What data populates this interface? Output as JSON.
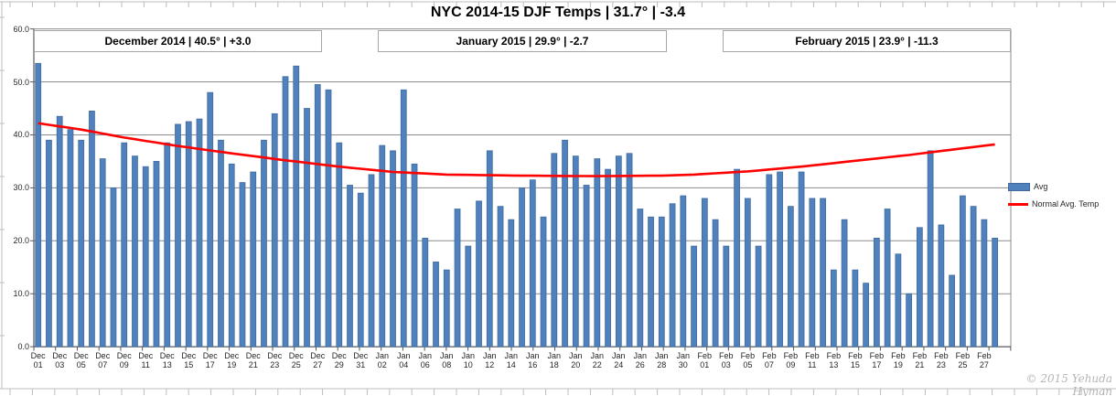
{
  "title": "NYC 2014-15 DJF Temps | 31.7° | -3.4",
  "month_boxes": [
    {
      "label": "December 2014 | 40.5° | +3.0"
    },
    {
      "label": "January 2015 | 29.9° | -2.7"
    },
    {
      "label": "February 2015 | 23.9° | -11.3"
    }
  ],
  "legend": {
    "avg_label": "Avg",
    "normal_label": "Normal Avg. Temp"
  },
  "copyright": "© 2015 Yehuda Hyman",
  "colors": {
    "bar_fill": "#4F81BD",
    "bar_border": "#41699C",
    "normal_line": "#FF0000",
    "gridline": "#8C8C8C",
    "axis_line": "#595959",
    "sheet_line": "#bdbdbd",
    "axis_text": "#262626"
  },
  "chart_data": {
    "type": "bar",
    "title": "NYC 2014-15 DJF Temps | 31.7° | -3.4",
    "ylim": [
      0,
      60
    ],
    "ytick_labels": [
      "0.0",
      "10.0",
      "20.0",
      "30.0",
      "40.0",
      "50.0",
      "60.0"
    ],
    "grid": "horizontal",
    "legend_position": "right",
    "xtick_labels": [
      "Dec 01",
      "Dec 03",
      "Dec 05",
      "Dec 07",
      "Dec 09",
      "Dec 11",
      "Dec 13",
      "Dec 15",
      "Dec 17",
      "Dec 19",
      "Dec 21",
      "Dec 23",
      "Dec 25",
      "Dec 27",
      "Dec 29",
      "Dec 31",
      "Jan 02",
      "Jan 04",
      "Jan 06",
      "Jan 08",
      "Jan 10",
      "Jan 12",
      "Jan 14",
      "Jan 16",
      "Jan 18",
      "Jan 20",
      "Jan 22",
      "Jan 24",
      "Jan 26",
      "Jan 28",
      "Jan 30",
      "Feb 01",
      "Feb 03",
      "Feb 05",
      "Feb 07",
      "Feb 09",
      "Feb 11",
      "Feb 13",
      "Feb 15",
      "Feb 17",
      "Feb 19",
      "Feb 21",
      "Feb 23",
      "Feb 25",
      "Feb 27"
    ],
    "categories_all_days": {
      "months": [
        {
          "name": "Dec",
          "days": 31
        },
        {
          "name": "Jan",
          "days": 31
        },
        {
          "name": "Feb",
          "days": 28
        }
      ]
    },
    "series": [
      {
        "name": "Avg",
        "type": "bar",
        "values": [
          53.5,
          39.0,
          43.5,
          41.0,
          39.0,
          44.5,
          35.5,
          30.0,
          38.5,
          36.0,
          34.0,
          35.0,
          38.5,
          42.0,
          42.5,
          43.0,
          48.0,
          39.0,
          34.5,
          31.0,
          33.0,
          39.0,
          44.0,
          51.0,
          53.0,
          45.0,
          49.5,
          48.5,
          38.5,
          30.5,
          29.0,
          32.5,
          38.0,
          37.0,
          48.5,
          34.5,
          20.5,
          16.0,
          14.5,
          26.0,
          19.0,
          27.5,
          37.0,
          26.5,
          24.0,
          30.0,
          31.5,
          24.5,
          36.5,
          39.0,
          36.0,
          30.5,
          35.5,
          33.5,
          36.0,
          36.5,
          26.0,
          24.5,
          24.5,
          27.0,
          28.5,
          19.0,
          28.0,
          24.0,
          19.0,
          33.5,
          28.0,
          19.0,
          32.5,
          33.0,
          26.5,
          33.0,
          28.0,
          28.0,
          14.5,
          24.0,
          14.5,
          12.0,
          20.5,
          26.0,
          17.5,
          10.0,
          22.5,
          37.0,
          23.0,
          13.5,
          28.5,
          26.5,
          24.0,
          20.5
        ]
      },
      {
        "name": "Normal Avg. Temp",
        "type": "line",
        "anchors": [
          [
            0,
            42.2
          ],
          [
            4,
            41.0
          ],
          [
            8,
            39.5
          ],
          [
            13,
            37.9
          ],
          [
            18,
            36.5
          ],
          [
            23,
            35.2
          ],
          [
            28,
            34.0
          ],
          [
            33,
            33.0
          ],
          [
            38,
            32.5
          ],
          [
            45,
            32.3
          ],
          [
            52,
            32.2
          ],
          [
            58,
            32.3
          ],
          [
            61,
            32.5
          ],
          [
            66,
            33.1
          ],
          [
            71,
            34.0
          ],
          [
            76,
            35.1
          ],
          [
            81,
            36.2
          ],
          [
            85,
            37.2
          ],
          [
            89,
            38.2
          ]
        ]
      }
    ]
  }
}
